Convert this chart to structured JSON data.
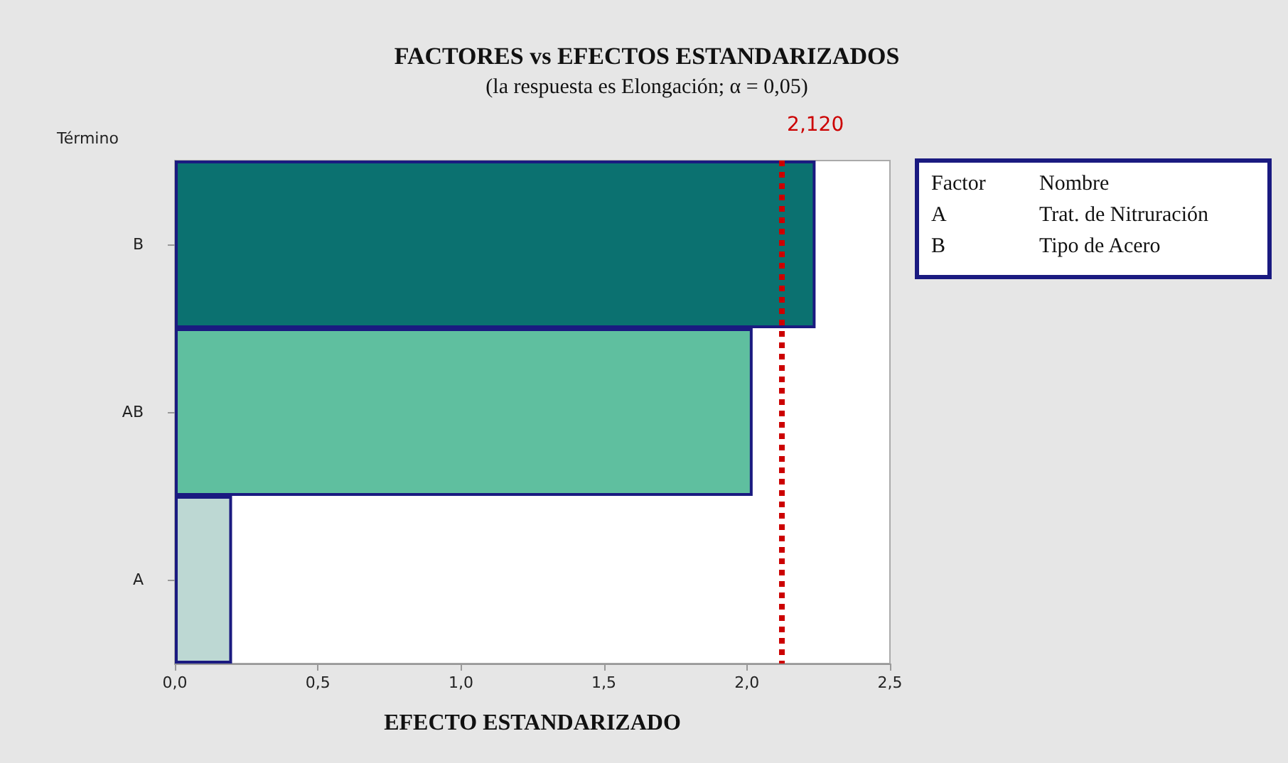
{
  "chart_data": {
    "type": "bar",
    "orientation": "horizontal",
    "title": "FACTORES vs EFECTOS ESTANDARIZADOS",
    "subtitle": "(la respuesta es Elongación; α = 0,05)",
    "xlabel": "EFECTO ESTANDARIZADO",
    "ylabel": "Término",
    "categories": [
      "B",
      "AB",
      "A"
    ],
    "values": [
      2.24,
      2.02,
      0.2
    ],
    "colors": [
      "#0b7170",
      "#5fbf9f",
      "#bdd8d3"
    ],
    "xlim": [
      0,
      2.5
    ],
    "xticks": [
      {
        "value": 0,
        "label": "0,0"
      },
      {
        "value": 0.5,
        "label": "0,5"
      },
      {
        "value": 1,
        "label": "1,0"
      },
      {
        "value": 1.5,
        "label": "1,5"
      },
      {
        "value": 2,
        "label": "2,0"
      },
      {
        "value": 2.5,
        "label": "2,5"
      }
    ],
    "ref_lines": [
      {
        "axis": "x",
        "value": 2.12,
        "label": "2,120",
        "color": "#cc0000",
        "line_style": "dotted"
      }
    ],
    "annotations": [
      "Factor",
      "Nombre",
      "A",
      "Trat. de Nitruración",
      "B",
      "Tipo de Acero"
    ],
    "grid": false
  }
}
